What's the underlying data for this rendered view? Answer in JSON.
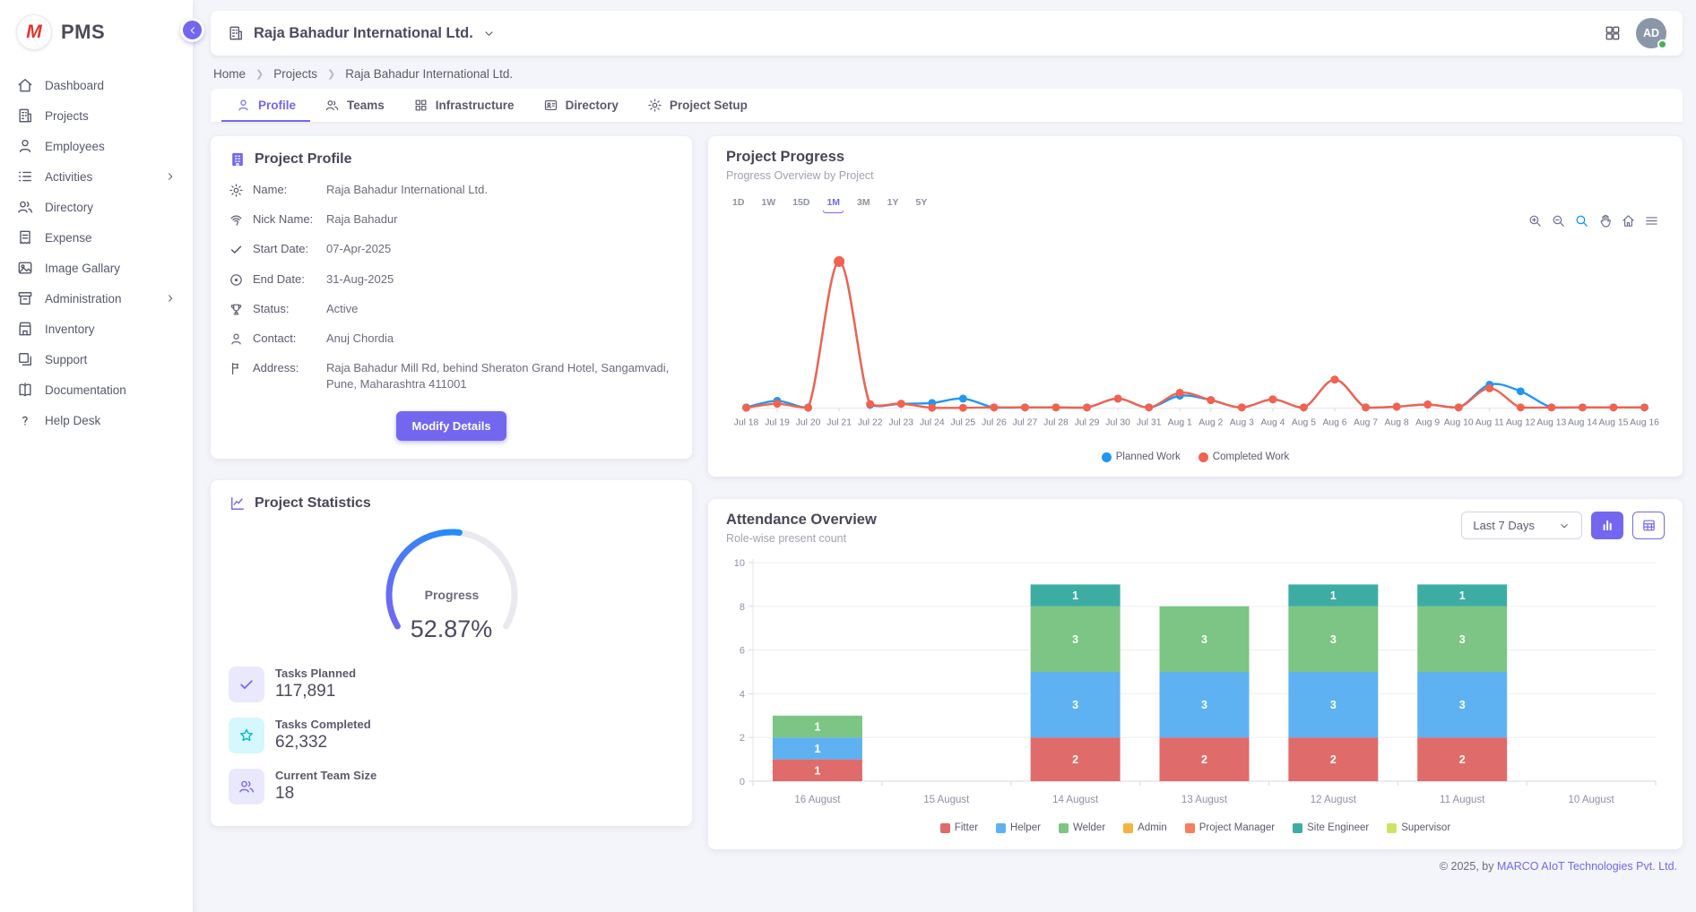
{
  "app": {
    "name": "PMS",
    "logo_letter": "M"
  },
  "sidebar": {
    "items": [
      {
        "label": "Dashboard"
      },
      {
        "label": "Projects"
      },
      {
        "label": "Employees"
      },
      {
        "label": "Activities",
        "expandable": true
      },
      {
        "label": "Directory"
      },
      {
        "label": "Expense"
      },
      {
        "label": "Image Gallary"
      },
      {
        "label": "Administration",
        "expandable": true
      },
      {
        "label": "Inventory"
      },
      {
        "label": "Support"
      },
      {
        "label": "Documentation"
      },
      {
        "label": "Help Desk"
      }
    ]
  },
  "header": {
    "company": "Raja Bahadur International Ltd.",
    "avatar_initials": "AD"
  },
  "breadcrumb": {
    "items": [
      "Home",
      "Projects",
      "Raja Bahadur International Ltd."
    ]
  },
  "tabs": {
    "active": "Profile",
    "items": [
      {
        "label": "Profile"
      },
      {
        "label": "Teams"
      },
      {
        "label": "Infrastructure"
      },
      {
        "label": "Directory"
      },
      {
        "label": "Project Setup"
      }
    ]
  },
  "profile_card": {
    "title": "Project Profile",
    "fields": [
      {
        "label": "Name:",
        "value": "Raja Bahadur International Ltd."
      },
      {
        "label": "Nick Name:",
        "value": "Raja Bahadur"
      },
      {
        "label": "Start Date:",
        "value": "07-Apr-2025"
      },
      {
        "label": "End Date:",
        "value": "31-Aug-2025"
      },
      {
        "label": "Status:",
        "value": "Active"
      },
      {
        "label": "Contact:",
        "value": "Anuj Chordia"
      },
      {
        "label": "Address:",
        "value": "Raja Bahadur Mill Rd, behind Sheraton Grand Hotel, Sangamvadi, Pune, Maharashtra 411001"
      }
    ],
    "button_label": "Modify Details"
  },
  "stats_card": {
    "title": "Project Statistics",
    "gauge": {
      "label": "Progress",
      "value_text": "52.87%",
      "percent": 52.87,
      "track_color": "#e9e9f0",
      "start_color": "#7367f0",
      "end_color": "#1f8efd"
    },
    "stats": [
      {
        "label": "Tasks Planned",
        "value": "117,891"
      },
      {
        "label": "Tasks Completed",
        "value": "62,332"
      },
      {
        "label": "Current Team Size",
        "value": "18"
      }
    ]
  },
  "progress_card": {
    "title": "Project Progress",
    "subtitle": "Progress Overview by Project",
    "ranges": [
      "1D",
      "1W",
      "15D",
      "1M",
      "3M",
      "1Y",
      "5Y"
    ],
    "active_range": "1M"
  },
  "attendance_card": {
    "title": "Attendance Overview",
    "subtitle": "Role-wise present count",
    "filter_value": "Last 7 Days"
  },
  "footer": {
    "prefix": "© 2025, by ",
    "link_text": "MARCO AIoT Technologies Pvt. Ltd."
  },
  "chart_data": [
    {
      "type": "line",
      "title": "Project Progress",
      "subtitle": "Progress Overview by Project",
      "x": [
        "Jul 18",
        "Jul 19",
        "Jul 20",
        "Jul 21",
        "Jul 22",
        "Jul 23",
        "Jul 24",
        "Jul 25",
        "Jul 26",
        "Jul 27",
        "Jul 28",
        "Jul 29",
        "Jul 30",
        "Jul 31",
        "Aug 1",
        "Aug 2",
        "Aug 3",
        "Aug 4",
        "Aug 5",
        "Aug 6",
        "Aug 7",
        "Aug 8",
        "Aug 9",
        "Aug 10",
        "Aug 11",
        "Aug 12",
        "Aug 13",
        "Aug 14",
        "Aug 15",
        "Aug 16"
      ],
      "series": [
        {
          "name": "Planned Work",
          "color": "#2196f3",
          "values": [
            0.1,
            1.0,
            0.1,
            20,
            0.45,
            0.6,
            0.7,
            1.3,
            0.1,
            0.1,
            0.1,
            0.1,
            1.3,
            0.1,
            1.7,
            1.1,
            0.1,
            1.2,
            0.1,
            3.9,
            0.1,
            0.2,
            0.5,
            0.1,
            3.2,
            2.3,
            0.1,
            0.1,
            0.1,
            0.1
          ]
        },
        {
          "name": "Completed Work",
          "color": "#f4614d",
          "values": [
            0.05,
            0.6,
            0.05,
            20,
            0.55,
            0.6,
            0.05,
            0.05,
            0.1,
            0.1,
            0.1,
            0.1,
            1.3,
            0.1,
            2.1,
            1.1,
            0.1,
            1.2,
            0.1,
            3.9,
            0.1,
            0.2,
            0.5,
            0.1,
            2.7,
            0.1,
            0.1,
            0.1,
            0.1,
            0.1
          ]
        }
      ],
      "ylim": [
        0,
        21
      ],
      "grid": false,
      "legend_position": "bottom"
    },
    {
      "type": "bar",
      "stacked": true,
      "title": "Attendance Overview",
      "subtitle": "Role-wise present count",
      "categories": [
        "16 August",
        "15 August",
        "14 August",
        "13 August",
        "12 August",
        "11 August",
        "10 August"
      ],
      "series": [
        {
          "name": "Fitter",
          "color": "#e06b6b",
          "values": [
            1,
            0,
            2,
            2,
            2,
            2,
            0
          ]
        },
        {
          "name": "Helper",
          "color": "#5fb2f2",
          "values": [
            1,
            0,
            3,
            3,
            3,
            3,
            0
          ]
        },
        {
          "name": "Welder",
          "color": "#7cc584",
          "values": [
            1,
            0,
            3,
            3,
            3,
            3,
            0
          ]
        },
        {
          "name": "Admin",
          "color": "#f6b340",
          "values": [
            0,
            0,
            0,
            0,
            0,
            0,
            0
          ]
        },
        {
          "name": "Project Manager",
          "color": "#f87f5f",
          "values": [
            0,
            0,
            0,
            0,
            0,
            0,
            0
          ]
        },
        {
          "name": "Site Engineer",
          "color": "#3dada4",
          "values": [
            0,
            0,
            1,
            0,
            1,
            1,
            0
          ]
        },
        {
          "name": "Supervisor",
          "color": "#cfe265",
          "values": [
            0,
            0,
            0,
            0,
            0,
            0,
            0
          ]
        }
      ],
      "ylim": [
        0,
        10
      ],
      "yticks": [
        0,
        2,
        4,
        6,
        8,
        10
      ],
      "grid": true,
      "legend_position": "bottom"
    }
  ]
}
